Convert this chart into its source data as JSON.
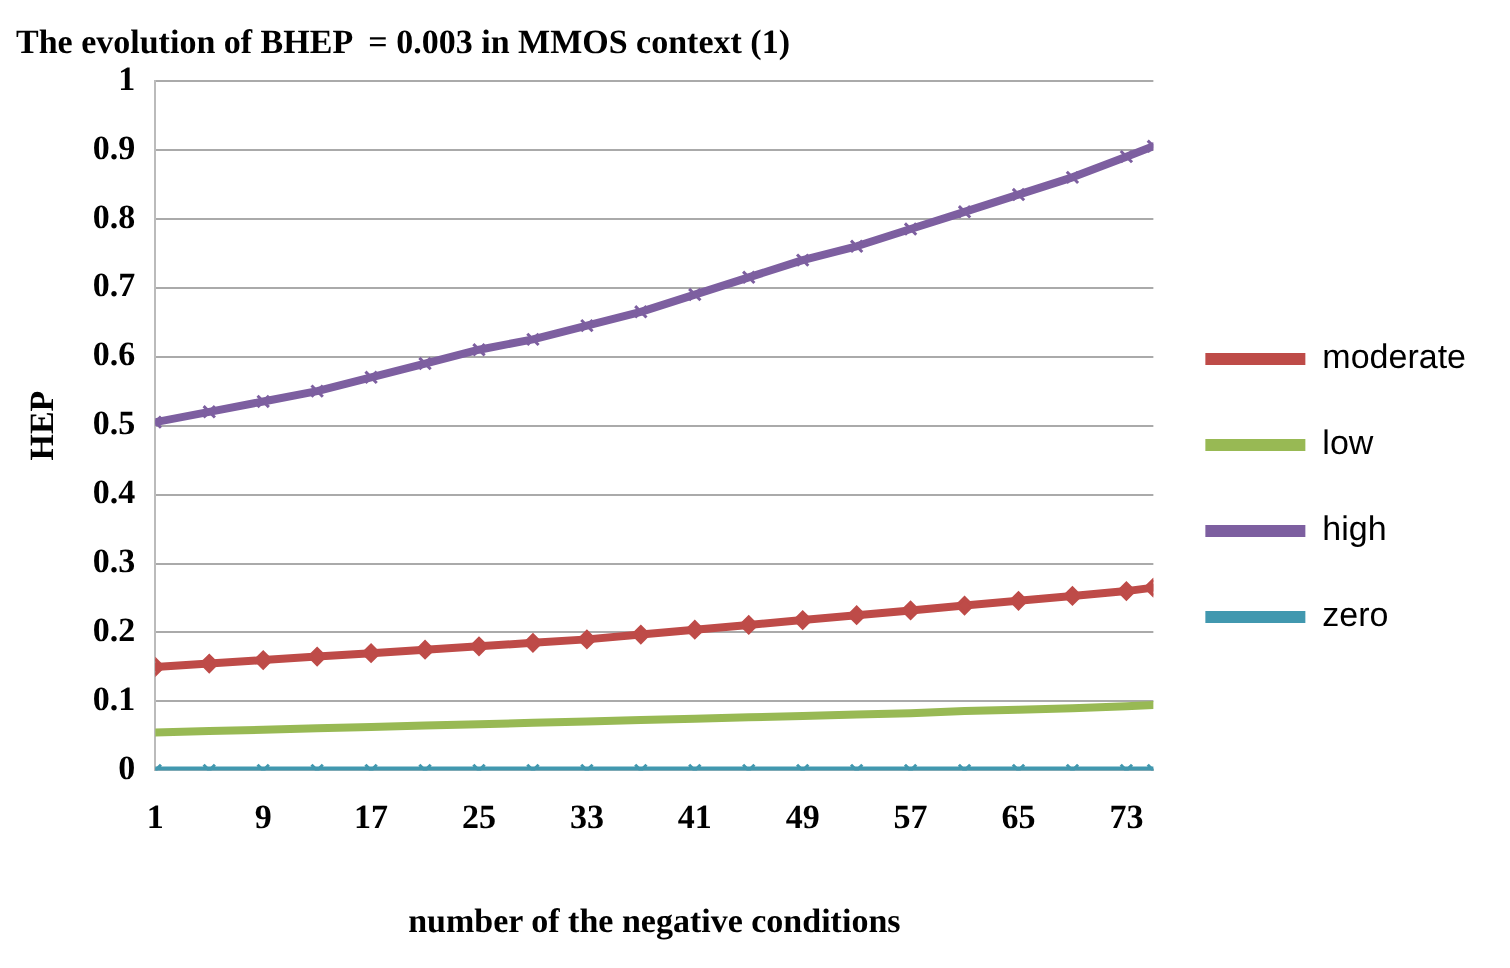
{
  "chart_data": {
    "type": "line",
    "title": "The evolution of BHEP  = 0.003 in MMOS context (1)",
    "xlabel": "number of the negative conditions",
    "ylabel": "HEP",
    "x": [
      1,
      5,
      9,
      13,
      17,
      21,
      25,
      29,
      33,
      37,
      41,
      45,
      49,
      53,
      57,
      61,
      65,
      69,
      73,
      75
    ],
    "xlim": [
      1,
      75
    ],
    "xticks": [
      1,
      9,
      17,
      25,
      33,
      41,
      49,
      57,
      65,
      73
    ],
    "ylim": [
      0,
      1
    ],
    "yticks": [
      0,
      0.1,
      0.2,
      0.3,
      0.4,
      0.5,
      0.6,
      0.7,
      0.8,
      0.9,
      1
    ],
    "grid": "y",
    "legend": "right",
    "series": [
      {
        "name": "moderate",
        "color": "#be4b48",
        "marker": "diamond",
        "values": [
          0.15,
          0.155,
          0.16,
          0.165,
          0.17,
          0.175,
          0.18,
          0.185,
          0.19,
          0.197,
          0.204,
          0.211,
          0.218,
          0.225,
          0.232,
          0.239,
          0.246,
          0.253,
          0.26,
          0.265
        ]
      },
      {
        "name": "low",
        "color": "#98b954",
        "marker": "none",
        "values": [
          0.055,
          0.057,
          0.059,
          0.061,
          0.063,
          0.065,
          0.067,
          0.069,
          0.071,
          0.073,
          0.075,
          0.077,
          0.079,
          0.081,
          0.083,
          0.086,
          0.088,
          0.09,
          0.093,
          0.095
        ]
      },
      {
        "name": "high",
        "color": "#7d5fa0",
        "marker": "cross",
        "values": [
          0.505,
          0.52,
          0.535,
          0.55,
          0.57,
          0.59,
          0.61,
          0.625,
          0.645,
          0.665,
          0.69,
          0.715,
          0.74,
          0.76,
          0.785,
          0.81,
          0.835,
          0.86,
          0.89,
          0.905
        ]
      },
      {
        "name": "zero",
        "color": "#4198af",
        "marker": "cross",
        "values": [
          0,
          0,
          0,
          0,
          0,
          0,
          0,
          0,
          0,
          0,
          0,
          0,
          0,
          0,
          0,
          0,
          0,
          0,
          0,
          0
        ]
      }
    ]
  }
}
